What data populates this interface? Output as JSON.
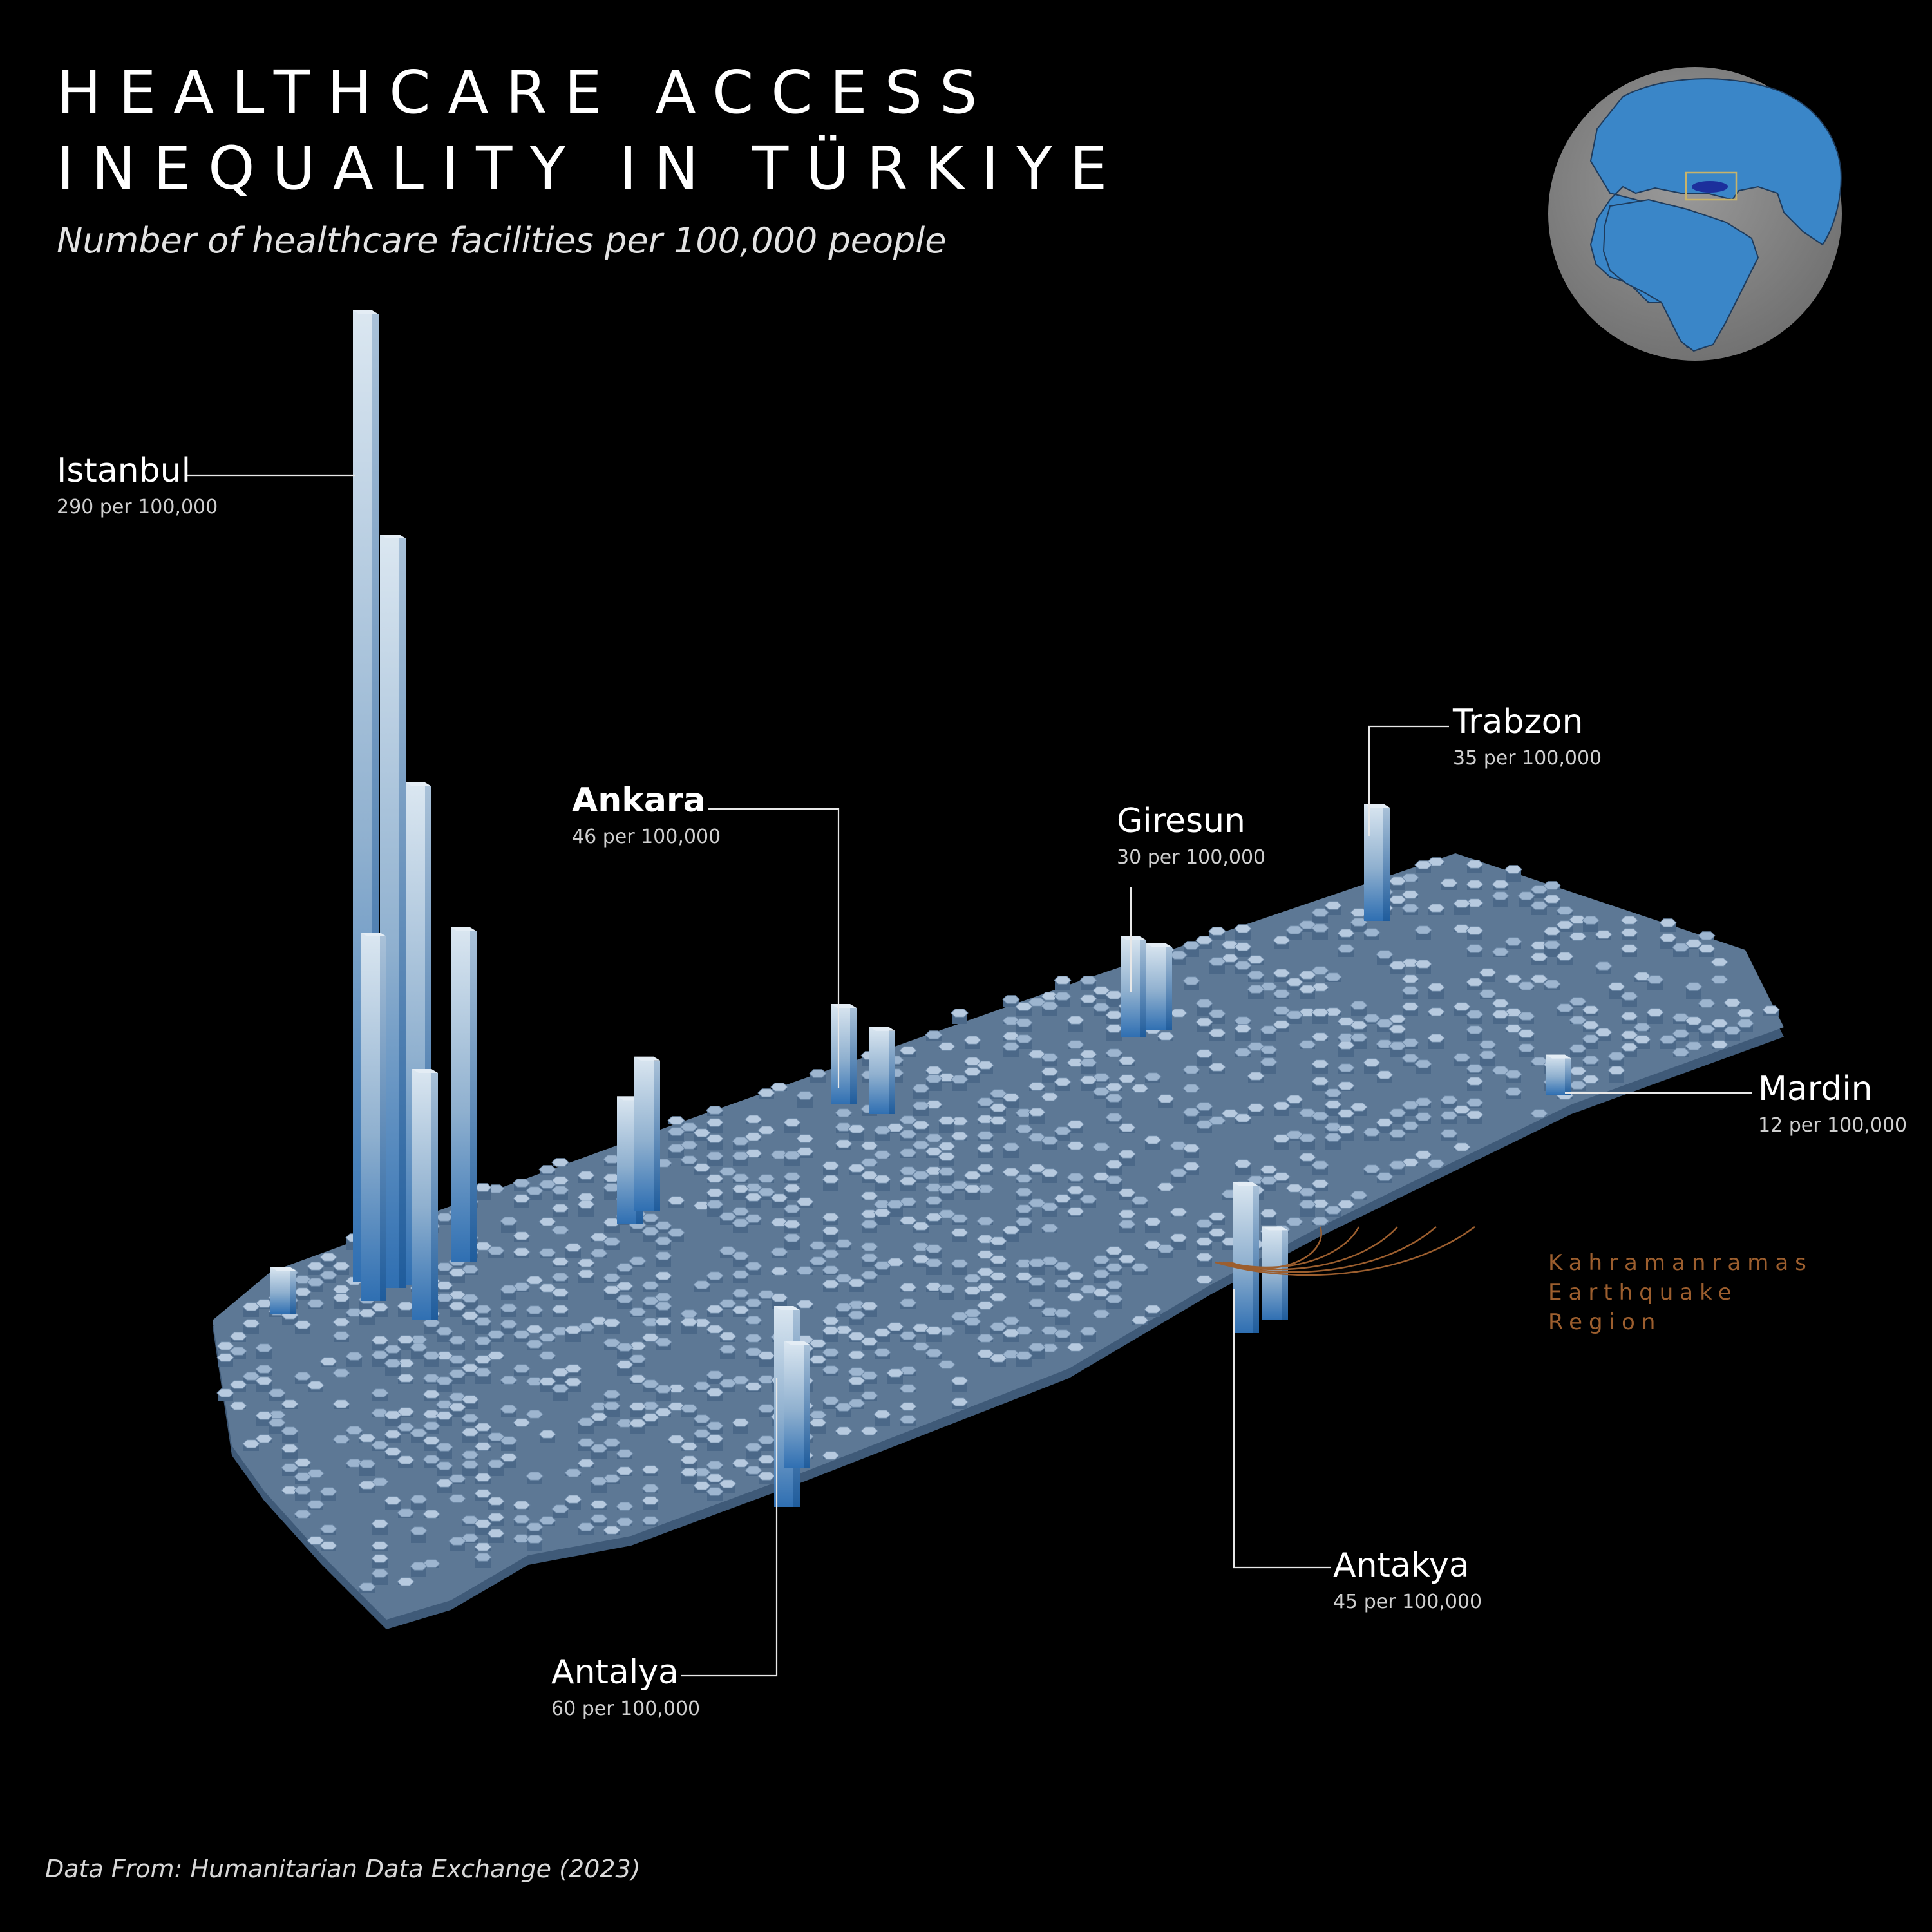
{
  "title": {
    "line1": "HEALTHCARE ACCESS",
    "line2": "INEQUALITY IN TÜRKIYE"
  },
  "subtitle": "Number of healthcare facilities per 100,000 people",
  "source": "Data From: Humanitarian Data Exchange (2023)",
  "colors": {
    "background": "#000000",
    "map_base": "#55708f",
    "hex_top": "#b4c7dc",
    "spike_light": "#d6e3ee",
    "spike_dark": "#2f6fb2",
    "globe_ocean": "#8a8a8a",
    "globe_land": "#3a86c8",
    "quake_accent": "#9c5e2e"
  },
  "cities": [
    {
      "name": "Istanbul",
      "value_text": "290 per 100,000",
      "value": 290
    },
    {
      "name": "Ankara",
      "value_text": "46 per 100,000",
      "value": 46
    },
    {
      "name": "Giresun",
      "value_text": "30 per 100,000",
      "value": 30
    },
    {
      "name": "Trabzon",
      "value_text": "35 per 100,000",
      "value": 35
    },
    {
      "name": "Mardin",
      "value_text": "12 per 100,000",
      "value": 12
    },
    {
      "name": "Antakya",
      "value_text": "45 per 100,000",
      "value": 45
    },
    {
      "name": "Antalya",
      "value_text": "60 per 100,000",
      "value": 60
    }
  ],
  "quake_region": {
    "lines": [
      "Kahramanramas",
      "Earthquake",
      "Region"
    ]
  }
}
